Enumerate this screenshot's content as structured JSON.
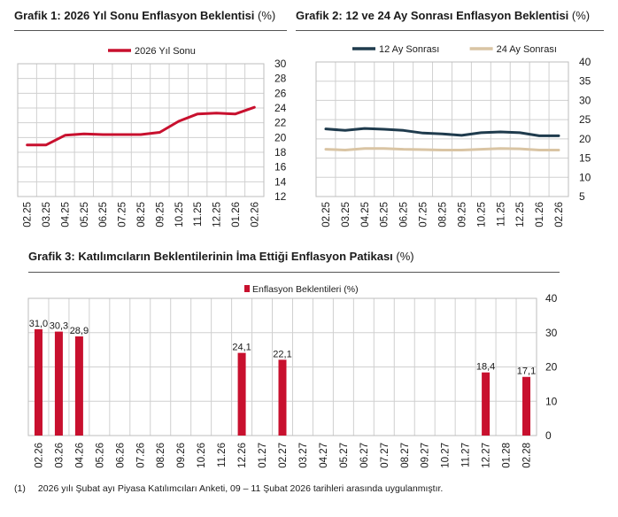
{
  "charts": {
    "c1": {
      "title": "Grafik 1: 2026 Yıl Sonu Enflasyon Beklentisi",
      "unit": "(%)"
    },
    "c2": {
      "title": "Grafik 2: 12 ve 24 Ay Sonrası Enflasyon Beklentisi",
      "unit": "(%)"
    },
    "c3": {
      "title": "Grafik 3: Katılımcıların Beklentilerinin İma Ettiği Enflasyon Patikası",
      "unit": "(%)"
    }
  },
  "footnote": {
    "number": "(1)",
    "text": "2026 yılı Şubat ayı Piyasa Katılımcıları Anketi, 09 – 11 Şubat 2026 tarihleri arasında uygulanmıştır."
  },
  "colors": {
    "crimson": "#C8102E",
    "navy": "#1F3B4D",
    "beige": "#D9C4A3",
    "grid": "#D0D0D0"
  },
  "chart_data": [
    {
      "type": "line",
      "title": "Grafik 1: 2026 Yıl Sonu Enflasyon Beklentisi",
      "ylabel": "(%)",
      "x": [
        "02.25",
        "03.25",
        "04.25",
        "05.25",
        "06.25",
        "07.25",
        "08.25",
        "09.25",
        "10.25",
        "11.25",
        "12.25",
        "01.26",
        "02.26"
      ],
      "series": [
        {
          "name": "2026 Yıl Sonu",
          "color": "#C8102E",
          "values": [
            19.0,
            19.0,
            20.3,
            20.5,
            20.4,
            20.4,
            20.4,
            20.7,
            22.2,
            23.2,
            23.3,
            23.2,
            24.1
          ]
        }
      ],
      "ylim": [
        12,
        30
      ],
      "yticks": [
        12,
        14,
        16,
        18,
        20,
        22,
        24,
        26,
        28,
        30
      ],
      "grid": true,
      "legend": "top-center"
    },
    {
      "type": "line",
      "title": "Grafik 2: 12 ve 24 Ay Sonrası Enflasyon Beklentisi",
      "ylabel": "(%)",
      "x": [
        "02.25",
        "03.25",
        "04.25",
        "05.25",
        "06.25",
        "07.25",
        "08.25",
        "09.25",
        "10.25",
        "11.25",
        "12.25",
        "01.26",
        "02.26"
      ],
      "series": [
        {
          "name": "12 Ay Sonrası",
          "color": "#1F3B4D",
          "values": [
            22.6,
            22.2,
            22.7,
            22.5,
            22.2,
            21.5,
            21.3,
            20.9,
            21.6,
            21.8,
            21.6,
            20.8,
            20.8
          ]
        },
        {
          "name": "24 Ay Sonrası",
          "color": "#D9C4A3",
          "values": [
            17.3,
            17.1,
            17.5,
            17.5,
            17.3,
            17.2,
            17.1,
            17.1,
            17.3,
            17.5,
            17.4,
            17.1,
            17.1
          ]
        }
      ],
      "ylim": [
        5,
        40
      ],
      "yticks": [
        5,
        10,
        15,
        20,
        25,
        30,
        35,
        40
      ],
      "grid": true,
      "legend": "top-left"
    },
    {
      "type": "bar",
      "title": "Grafik 3: Katılımcıların Beklentilerinin İma Ettiği Enflasyon Patikası",
      "ylabel": "(%)",
      "categories": [
        "02.26",
        "03.26",
        "04.26",
        "05.26",
        "06.26",
        "07.26",
        "08.26",
        "09.26",
        "10.26",
        "11.26",
        "12.26",
        "01.27",
        "02.27",
        "03.27",
        "04.27",
        "05.27",
        "06.27",
        "07.27",
        "08.27",
        "09.27",
        "10.27",
        "11.27",
        "12.27",
        "01.28",
        "02.28"
      ],
      "series": [
        {
          "name": "Enflasyon Beklentileri (%)",
          "color": "#C8102E",
          "values": [
            31.0,
            30.3,
            28.9,
            null,
            null,
            null,
            null,
            null,
            null,
            null,
            24.1,
            null,
            22.1,
            null,
            null,
            null,
            null,
            null,
            null,
            null,
            null,
            null,
            18.4,
            null,
            17.1
          ],
          "labels": [
            "31,0",
            "30,3",
            "28,9",
            "",
            "",
            "",
            "",
            "",
            "",
            "",
            "24,1",
            "",
            "22,1",
            "",
            "",
            "",
            "",
            "",
            "",
            "",
            "",
            "",
            "18,4",
            "",
            "17,1"
          ]
        }
      ],
      "ylim": [
        0,
        40
      ],
      "yticks": [
        0,
        10,
        20,
        30,
        40
      ],
      "grid": true,
      "legend": "top-center"
    }
  ]
}
